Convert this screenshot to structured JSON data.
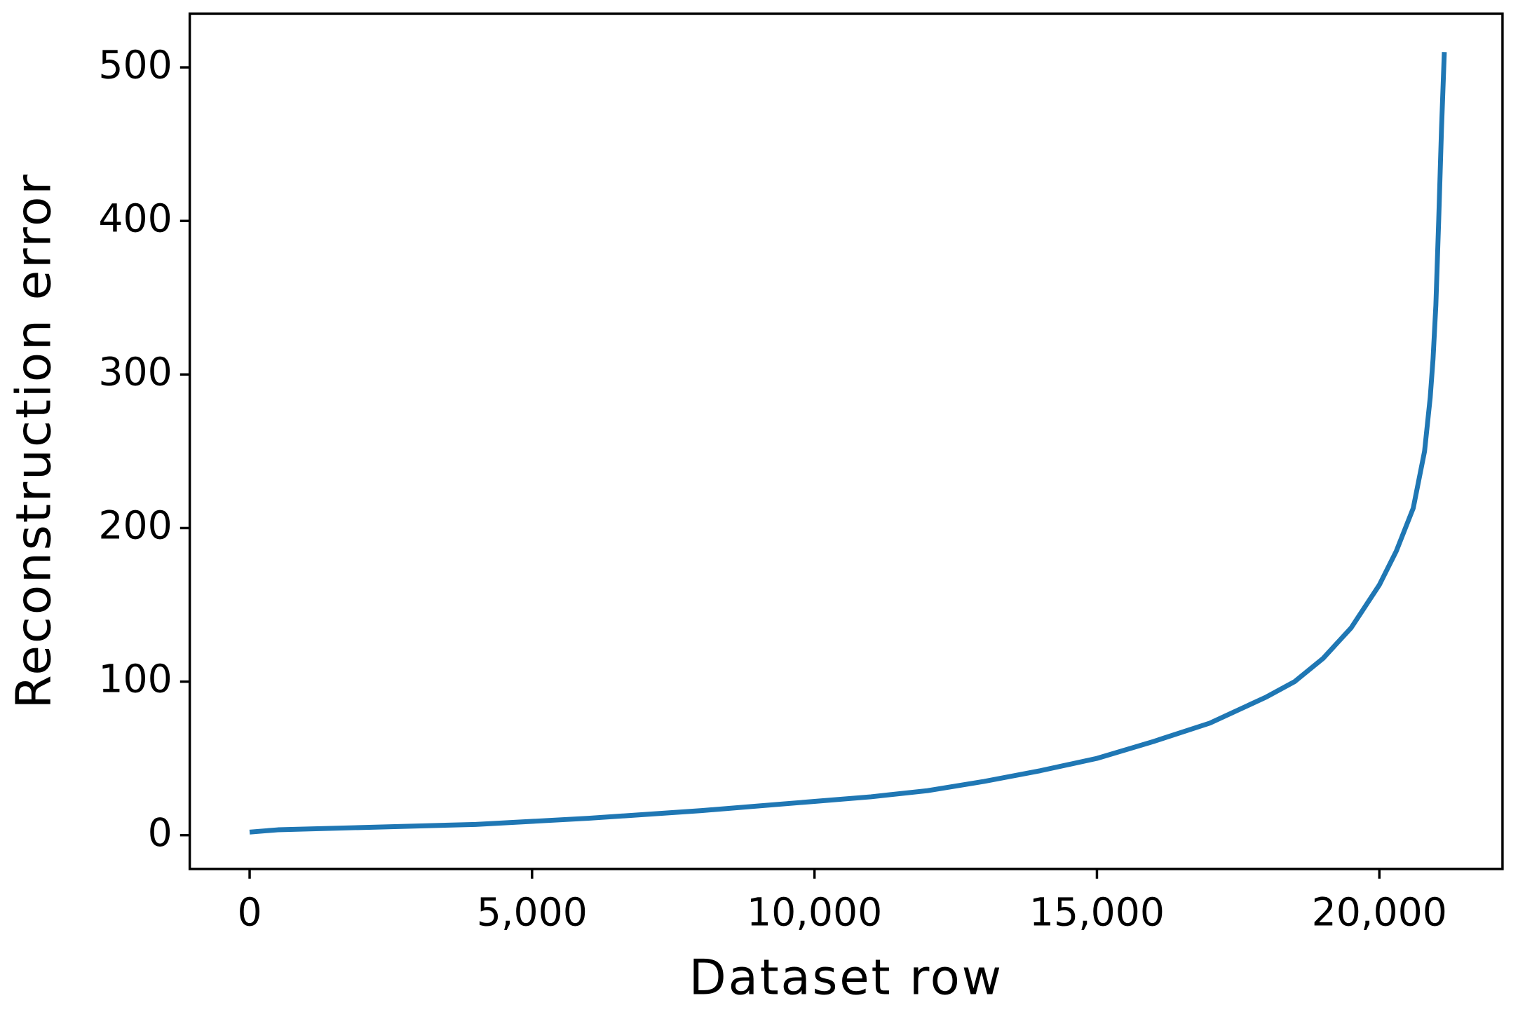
{
  "chart_data": {
    "type": "line",
    "x_label": "Dataset row",
    "y_label": "Reconstruction error",
    "x": [
      0,
      500,
      2000,
      4000,
      6000,
      8000,
      10000,
      11000,
      12000,
      13000,
      14000,
      15000,
      16000,
      17000,
      18000,
      18500,
      19000,
      19500,
      20000,
      20300,
      20600,
      20800,
      20900,
      20950,
      21000,
      21050,
      21100,
      21150
    ],
    "series": [
      {
        "name": "Reconstruction error",
        "color": "#1f77b4",
        "values": [
          2,
          3.5,
          5,
          7,
          11,
          16,
          22,
          25,
          29,
          35,
          42,
          50,
          61,
          73,
          90,
          100,
          115,
          135,
          163,
          185,
          213,
          250,
          285,
          310,
          345,
          400,
          460,
          510
        ]
      }
    ],
    "xlim": [
      -1060,
      22180
    ],
    "ylim": [
      -22,
      535
    ],
    "xticks": [
      0,
      {
        "value": 5000,
        "label": "5,000"
      },
      {
        "value": 10000,
        "label": "10,000"
      },
      {
        "value": 15000,
        "label": "15,000"
      },
      {
        "value": 20000,
        "label": "20,000"
      }
    ],
    "yticks": [
      0,
      100,
      200,
      300,
      400,
      500
    ],
    "grid": false
  }
}
